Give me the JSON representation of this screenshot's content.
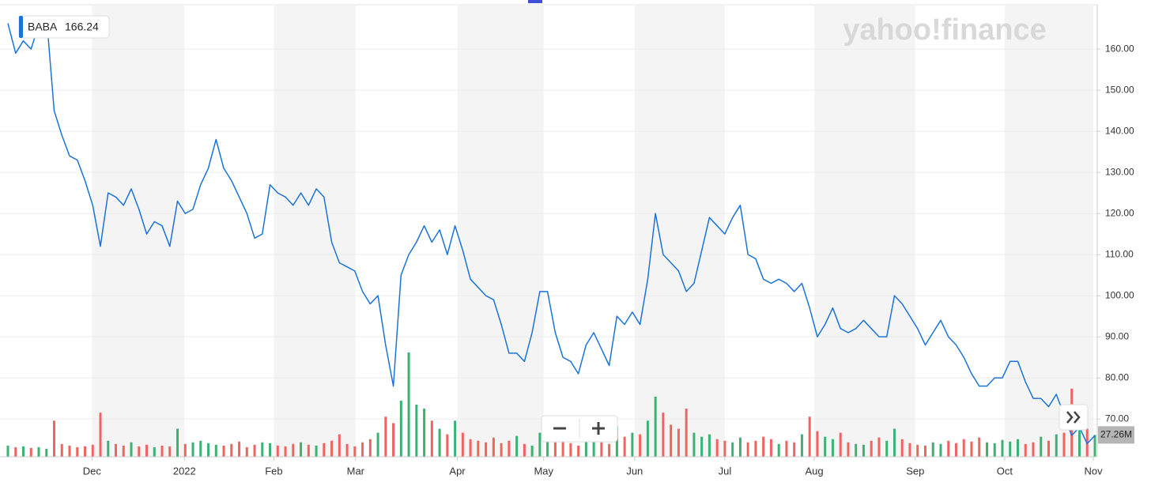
{
  "chart_data": {
    "type": "line",
    "watermark": "yahoo!finance",
    "series": [
      {
        "name": "BABA",
        "color": "#1a73d9",
        "values": [
          166.24,
          159,
          162,
          160,
          166,
          168,
          145,
          139,
          134,
          133,
          128,
          122,
          112,
          125,
          124,
          122,
          126,
          121,
          115,
          118,
          117,
          112,
          123,
          120,
          121,
          127,
          131,
          138,
          131,
          128,
          124,
          120,
          114,
          115,
          127,
          125,
          124,
          122,
          125,
          122,
          126,
          124,
          113,
          108,
          107,
          106,
          101,
          98,
          100,
          88,
          78,
          105,
          110,
          113,
          117,
          113,
          116,
          110,
          117,
          111,
          104,
          102,
          100,
          99,
          93,
          86,
          86,
          84,
          91,
          101,
          101,
          91,
          85,
          84,
          81,
          88,
          91,
          87,
          83,
          95,
          93,
          96,
          93,
          104,
          120,
          110,
          108,
          106,
          101,
          103,
          111,
          119,
          117,
          115,
          119,
          122,
          110,
          109,
          104,
          103,
          104,
          103,
          101,
          103,
          97,
          90,
          93,
          97,
          92,
          91,
          92,
          94,
          92,
          90,
          90,
          100,
          98,
          95,
          92,
          88,
          91,
          94,
          90,
          88,
          85,
          81,
          78,
          78,
          80,
          80,
          84,
          84,
          79,
          75,
          75,
          73,
          76,
          71,
          66,
          68,
          64,
          66
        ]
      }
    ],
    "volume": {
      "up_color": "#3bb273",
      "down_color": "#f0645f",
      "last_label": "27.26M",
      "vlim": [
        0,
        130
      ],
      "values": [
        14,
        12,
        13,
        11,
        12,
        10,
        45,
        16,
        14,
        12,
        13,
        15,
        55,
        20,
        16,
        14,
        18,
        13,
        15,
        12,
        14,
        13,
        35,
        16,
        18,
        20,
        17,
        15,
        14,
        16,
        19,
        12,
        15,
        18,
        17,
        14,
        13,
        16,
        18,
        15,
        14,
        17,
        20,
        28,
        16,
        13,
        18,
        22,
        30,
        50,
        42,
        70,
        130,
        65,
        60,
        45,
        35,
        28,
        45,
        30,
        22,
        20,
        18,
        24,
        17,
        20,
        26,
        16,
        14,
        30,
        22,
        18,
        20,
        17,
        14,
        19,
        22,
        18,
        16,
        38,
        25,
        30,
        28,
        45,
        75,
        55,
        40,
        35,
        60,
        30,
        25,
        28,
        22,
        20,
        18,
        24,
        18,
        20,
        25,
        22,
        16,
        20,
        18,
        28,
        50,
        32,
        25,
        22,
        30,
        18,
        16,
        15,
        20,
        24,
        20,
        35,
        22,
        17,
        15,
        14,
        18,
        16,
        20,
        17,
        22,
        19,
        24,
        18,
        17,
        21,
        19,
        22,
        16,
        18,
        25,
        20,
        28,
        30,
        85,
        40,
        35,
        27.26
      ]
    },
    "xlim": [
      0,
      141
    ],
    "xticks": [
      {
        "value": 10.9,
        "label": "Dec"
      },
      {
        "value": 22.9,
        "label": "2022"
      },
      {
        "value": 34.5,
        "label": "Feb"
      },
      {
        "value": 45.1,
        "label": "Mar"
      },
      {
        "value": 58.3,
        "label": "Apr"
      },
      {
        "value": 69.5,
        "label": "May"
      },
      {
        "value": 81.3,
        "label": "Jun"
      },
      {
        "value": 93.0,
        "label": "Jul"
      },
      {
        "value": 104.6,
        "label": "Aug"
      },
      {
        "value": 117.7,
        "label": "Sep"
      },
      {
        "value": 129.3,
        "label": "Oct"
      },
      {
        "value": 140.8,
        "label": "Nov"
      }
    ],
    "ylim": [
      60.8,
      170.4
    ],
    "yticks": [
      {
        "value": 70,
        "label": "70.00"
      },
      {
        "value": 80,
        "label": "80.00"
      },
      {
        "value": 90,
        "label": "90.00"
      },
      {
        "value": 100,
        "label": "100.00"
      },
      {
        "value": 110,
        "label": "110.00"
      },
      {
        "value": 120,
        "label": "120.00"
      },
      {
        "value": 130,
        "label": "130.00"
      },
      {
        "value": 140,
        "label": "140.00"
      },
      {
        "value": 150,
        "label": "150.00"
      },
      {
        "value": 160,
        "label": "160.00"
      }
    ],
    "grid": true
  }
}
